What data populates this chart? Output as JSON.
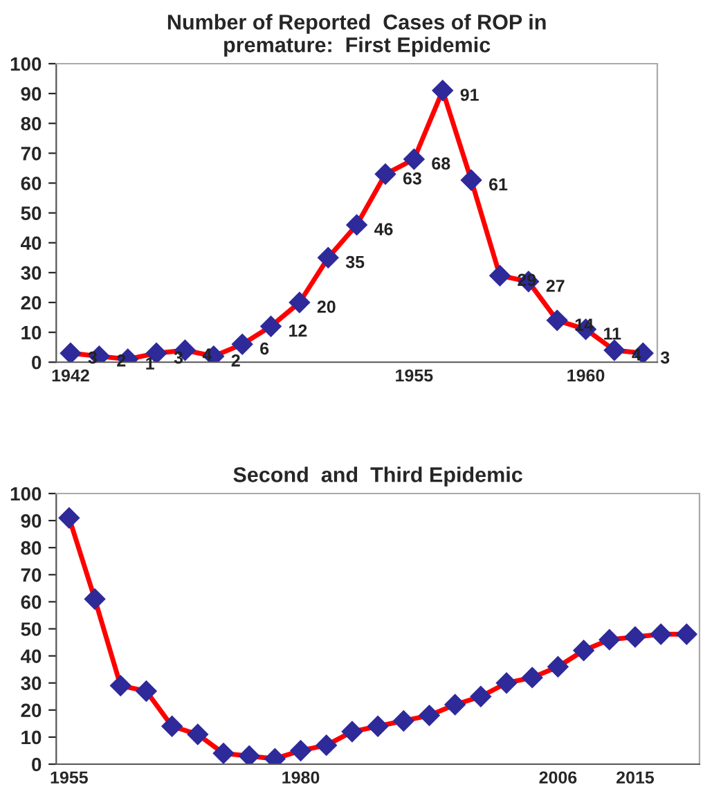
{
  "chart_data": [
    {
      "type": "line",
      "title": "Number of Reported  Cases of ROP in\npremature:  First Epidemic",
      "categories": [
        "1942",
        null,
        null,
        null,
        null,
        null,
        null,
        null,
        null,
        null,
        null,
        null,
        "1955",
        null,
        null,
        null,
        null,
        null,
        "1960",
        null,
        null
      ],
      "series": [
        {
          "color": "#ff0000",
          "values": [
            3,
            2,
            1,
            3,
            4,
            2,
            6,
            12,
            20,
            35,
            46,
            63,
            68,
            91,
            61,
            29,
            27,
            14,
            11,
            4,
            3
          ]
        }
      ],
      "ylim": [
        0,
        100
      ],
      "yticks": [
        0,
        10,
        20,
        30,
        40,
        50,
        60,
        70,
        80,
        90,
        100
      ],
      "marker": "diamond",
      "line_style": "solid",
      "data_labels": true,
      "grid": false,
      "legend": false
    },
    {
      "type": "line",
      "title": "Second  and  Third Epidemic",
      "categories": [
        "1955",
        null,
        null,
        null,
        null,
        null,
        null,
        null,
        null,
        "1980",
        null,
        null,
        null,
        null,
        null,
        null,
        null,
        null,
        null,
        "2006",
        null,
        null,
        "2015",
        null,
        null
      ],
      "series": [
        {
          "color": "#ff0000",
          "values": [
            91,
            61,
            29,
            27,
            14,
            11,
            4,
            3,
            2,
            5,
            7,
            12,
            14,
            16,
            18,
            22,
            25,
            30,
            32,
            36,
            42,
            46,
            47,
            48,
            48
          ]
        }
      ],
      "ylim": [
        0,
        100
      ],
      "yticks": [
        0,
        10,
        20,
        30,
        40,
        50,
        60,
        70,
        80,
        90,
        100
      ],
      "marker": "diamond",
      "line_style": "solid",
      "grid": false,
      "legend": false
    }
  ]
}
